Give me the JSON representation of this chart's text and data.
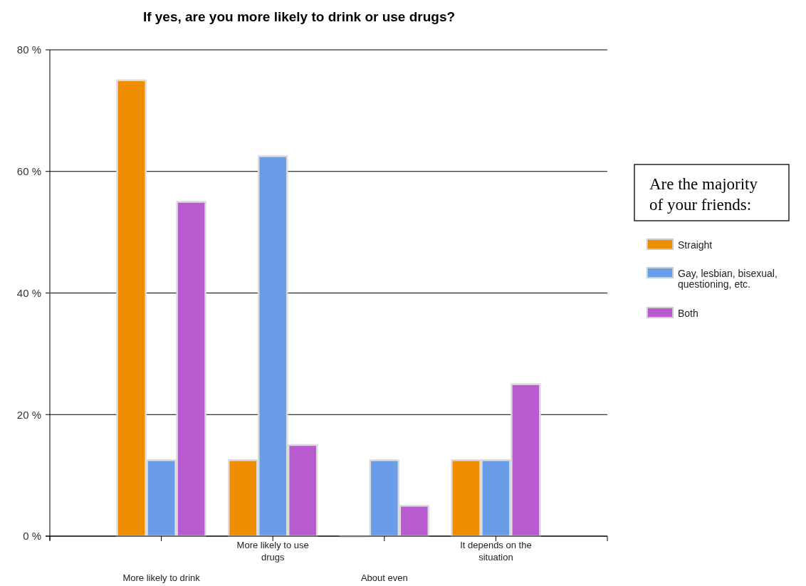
{
  "chart_data": {
    "type": "bar",
    "title": "If yes, are you more likely to drink or use drugs?",
    "categories": [
      "More likely to drink",
      "More likely to use drugs",
      "About even",
      "It depends on the situation"
    ],
    "series": [
      {
        "name": "Straight",
        "color": "#f08c00",
        "values": [
          75,
          12.5,
          0,
          12.5
        ]
      },
      {
        "name": "Gay, lesbian, bisexual, questioning, etc.",
        "color": "#6a9de8",
        "values": [
          12.5,
          62.5,
          12.5,
          12.5
        ]
      },
      {
        "name": "Both",
        "color": "#b95bd0",
        "values": [
          55,
          15,
          5,
          25
        ]
      }
    ],
    "ylim": [
      0,
      80
    ],
    "yticks": [
      {
        "value": 0,
        "label": "0 %"
      },
      {
        "value": 20,
        "label": "20 %"
      },
      {
        "value": 40,
        "label": "40 %"
      },
      {
        "value": 60,
        "label": "60 %"
      },
      {
        "value": 80,
        "label": "80 %"
      }
    ],
    "grid": "y",
    "legend": "right",
    "legend_title": "Are the majority of your friends:"
  }
}
